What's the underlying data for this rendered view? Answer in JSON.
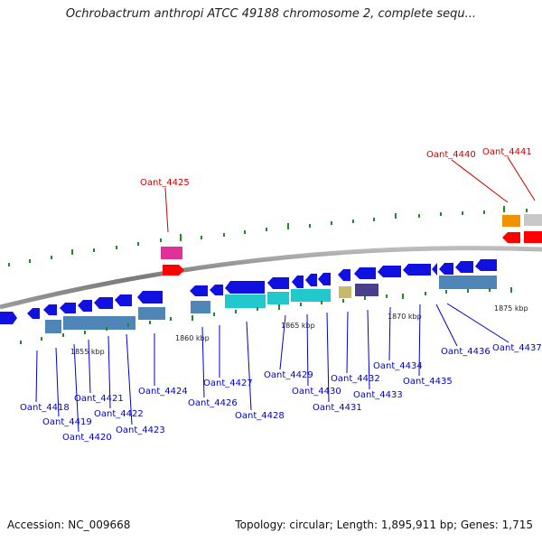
{
  "title": "Ochrobactrum anthropi ATCC 49188 chromosome 2, complete sequ...",
  "footer": {
    "accession": "Accession: NC_009668",
    "summary": "Topology: circular; Length: 1,895,911 bp; Genes: 1,715"
  },
  "colors": {
    "label_blue": "#0000cc",
    "label_red": "#cc0000",
    "gene_blue": "#1010e0",
    "cds_steel": "#4f86b8",
    "cds_cyan": "#21c9cc",
    "tick_green": "#228b22"
  },
  "scale_ticks": [
    "1855 kbp",
    "1860 kbp",
    "1865 kbp",
    "1870 kbp",
    "1875 kbp"
  ],
  "gene_labels": [
    {
      "text": "Oant_4418",
      "color": "blue"
    },
    {
      "text": "Oant_4419",
      "color": "blue"
    },
    {
      "text": "Oant_4420",
      "color": "blue"
    },
    {
      "text": "Oant_4421",
      "color": "blue"
    },
    {
      "text": "Oant_4422",
      "color": "blue"
    },
    {
      "text": "Oant_4423",
      "color": "blue"
    },
    {
      "text": "Oant_4424",
      "color": "blue"
    },
    {
      "text": "Oant_4425",
      "color": "red"
    },
    {
      "text": "Oant_4426",
      "color": "blue"
    },
    {
      "text": "Oant_4427",
      "color": "blue"
    },
    {
      "text": "Oant_4428",
      "color": "blue"
    },
    {
      "text": "Oant_4429",
      "color": "blue"
    },
    {
      "text": "Oant_4430",
      "color": "blue"
    },
    {
      "text": "Oant_4431",
      "color": "blue"
    },
    {
      "text": "Oant_4432",
      "color": "blue"
    },
    {
      "text": "Oant_4433",
      "color": "blue"
    },
    {
      "text": "Oant_4434",
      "color": "blue"
    },
    {
      "text": "Oant_4435",
      "color": "blue"
    },
    {
      "text": "Oant_4436",
      "color": "blue"
    },
    {
      "text": "Oant_4437",
      "color": "blue"
    },
    {
      "text": "Oant_4440",
      "color": "red"
    },
    {
      "text": "Oant_4441",
      "color": "red"
    }
  ]
}
